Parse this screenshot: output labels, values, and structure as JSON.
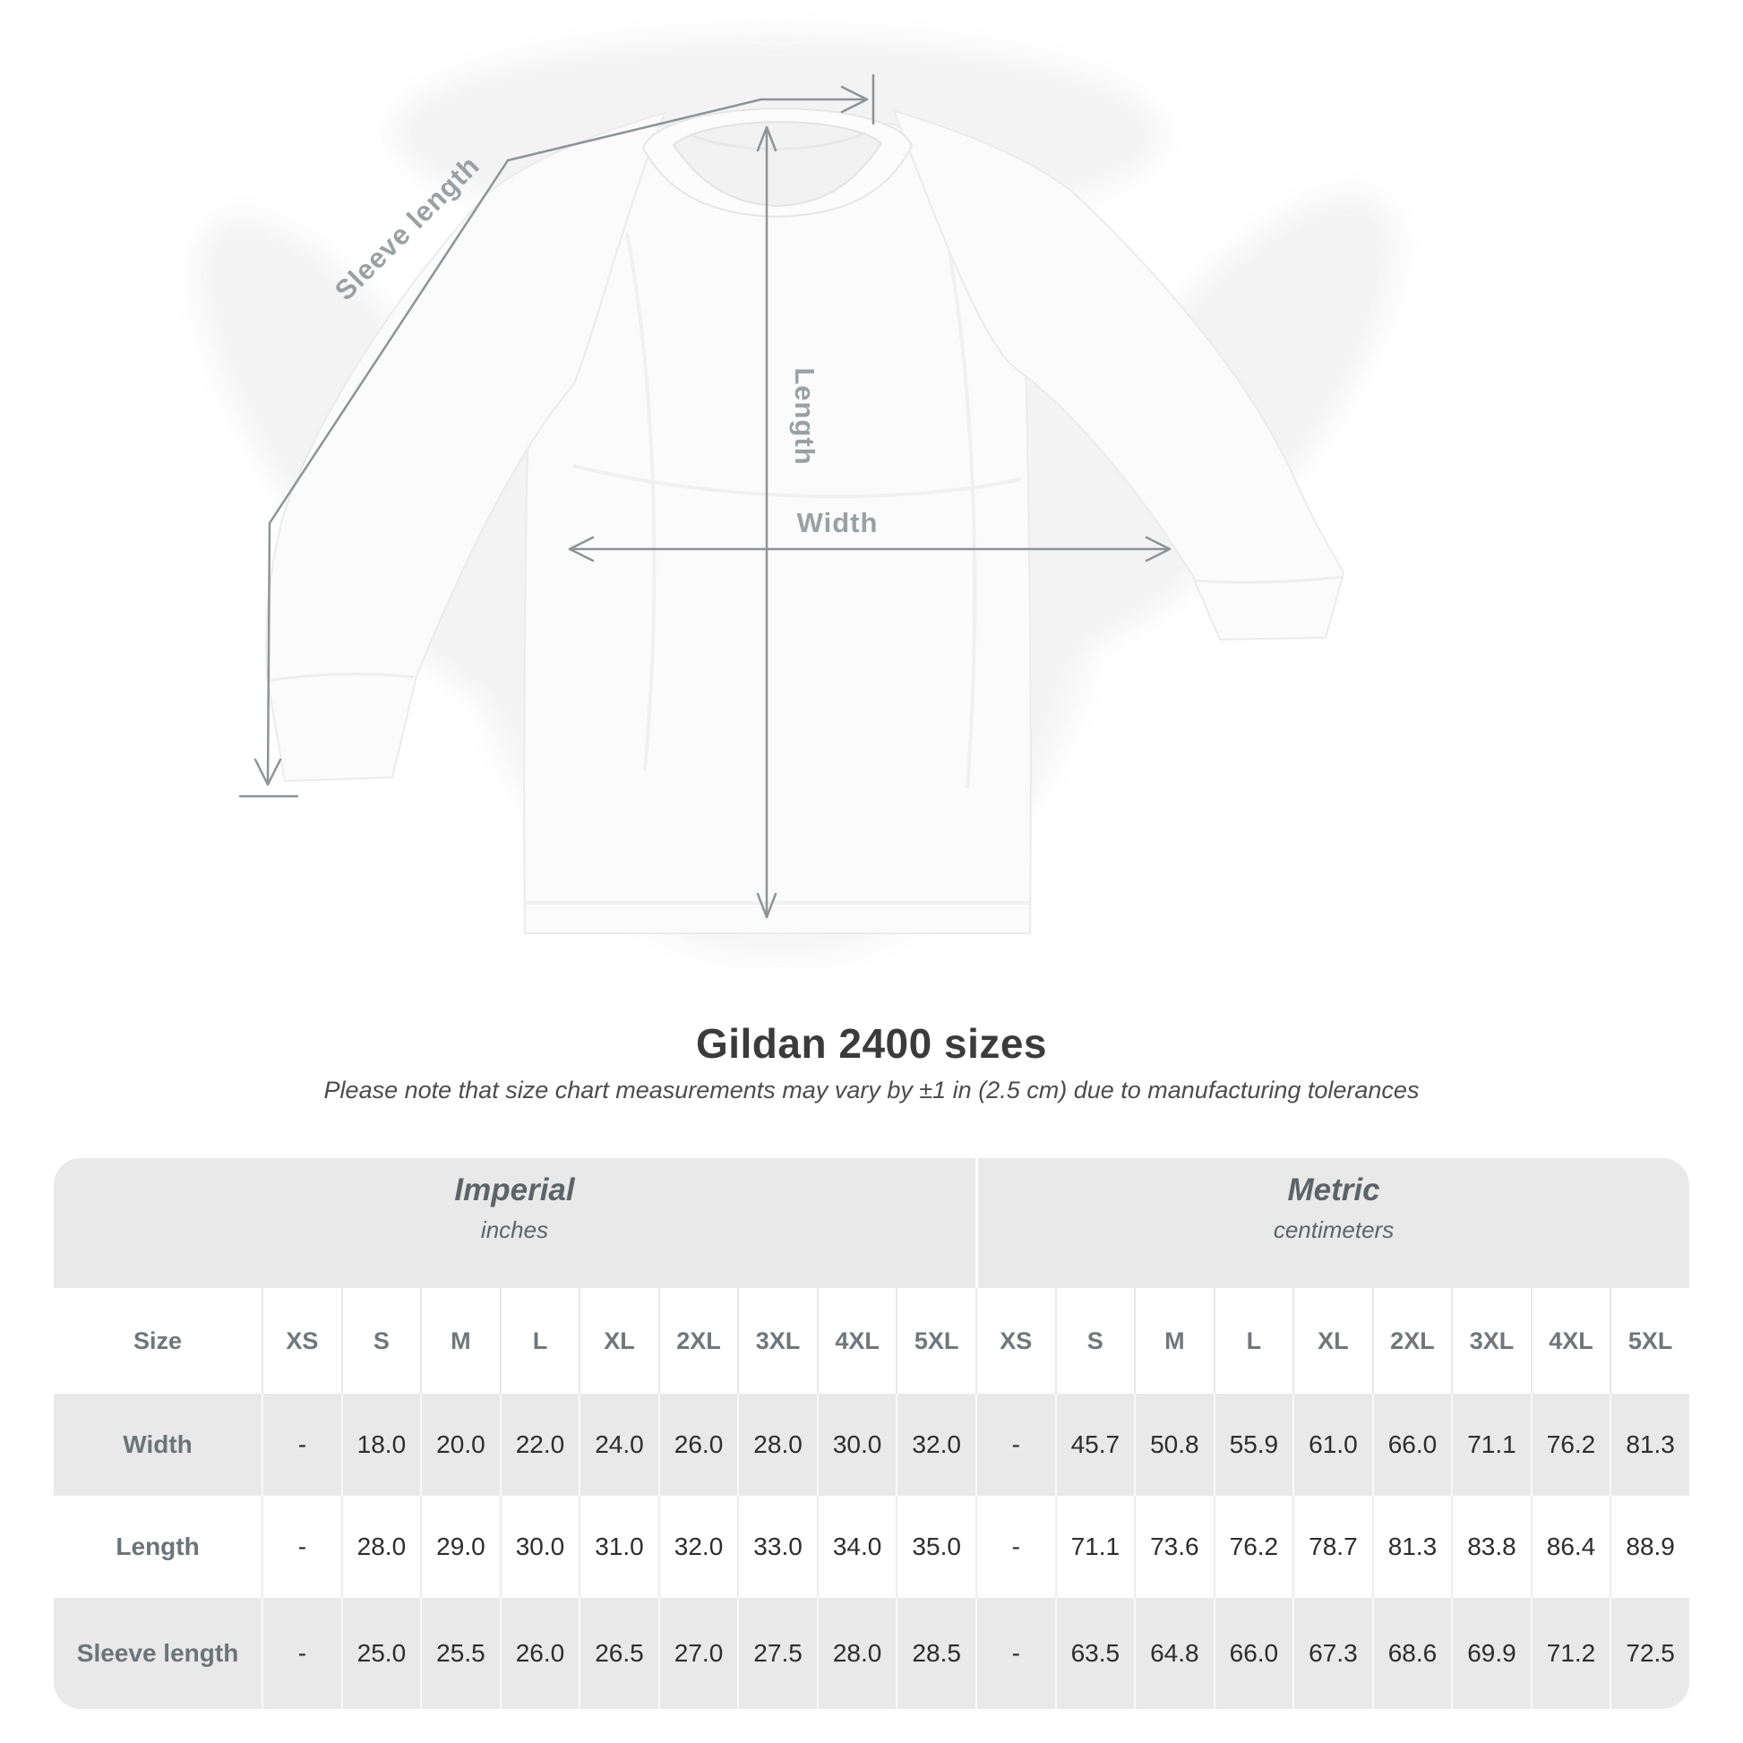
{
  "title": "Gildan 2400 sizes",
  "subtitle": "Please note that size chart measurements may vary by ±1 in (2.5 cm) due to manufacturing tolerances",
  "diagram": {
    "sleeve_label": "Sleeve length",
    "length_label": "Length",
    "width_label": "Width"
  },
  "chart_data": {
    "type": "table",
    "title": "Gildan 2400 sizes",
    "groups": [
      {
        "name": "Imperial",
        "unit": "inches"
      },
      {
        "name": "Metric",
        "unit": "centimeters"
      }
    ],
    "corner_label": "Size",
    "sizes": [
      "XS",
      "S",
      "M",
      "L",
      "XL",
      "2XL",
      "3XL",
      "4XL",
      "5XL"
    ],
    "rows": [
      {
        "label": "Width",
        "imperial": [
          "-",
          "18.0",
          "20.0",
          "22.0",
          "24.0",
          "26.0",
          "28.0",
          "30.0",
          "32.0"
        ],
        "metric": [
          "-",
          "45.7",
          "50.8",
          "55.9",
          "61.0",
          "66.0",
          "71.1",
          "76.2",
          "81.3"
        ]
      },
      {
        "label": "Length",
        "imperial": [
          "-",
          "28.0",
          "29.0",
          "30.0",
          "31.0",
          "32.0",
          "33.0",
          "34.0",
          "35.0"
        ],
        "metric": [
          "-",
          "71.1",
          "73.6",
          "76.2",
          "78.7",
          "81.3",
          "83.8",
          "86.4",
          "88.9"
        ]
      },
      {
        "label": "Sleeve length",
        "imperial": [
          "-",
          "25.0",
          "25.5",
          "26.0",
          "26.5",
          "27.0",
          "27.5",
          "28.0",
          "28.5"
        ],
        "metric": [
          "-",
          "63.5",
          "64.8",
          "66.0",
          "67.3",
          "68.6",
          "69.9",
          "71.2",
          "72.5"
        ]
      }
    ]
  },
  "colors": {
    "table_band": "#e9e9e9",
    "row_stripe": "#e9e9e9",
    "value_text": "#2d2d2d",
    "label_text": "#6d7478",
    "unit_text": "#5d6468",
    "diagram_line": "#8e9396",
    "diagram_label": "#9aa0a3",
    "title_text": "#3b3b3b"
  }
}
